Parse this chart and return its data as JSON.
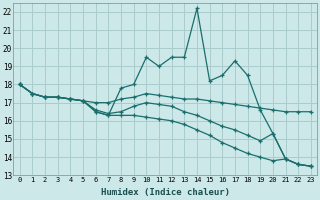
{
  "xlabel": "Humidex (Indice chaleur)",
  "bg_color": "#cce8e8",
  "grid_color": "#aacccc",
  "line_color": "#1a6e6e",
  "xlim": [
    -0.5,
    23.5
  ],
  "ylim": [
    13,
    22.5
  ],
  "yticks": [
    13,
    14,
    15,
    16,
    17,
    18,
    19,
    20,
    21,
    22
  ],
  "xticks": [
    0,
    1,
    2,
    3,
    4,
    5,
    6,
    7,
    8,
    9,
    10,
    11,
    12,
    13,
    14,
    15,
    16,
    17,
    18,
    19,
    20,
    21,
    22,
    23
  ],
  "series": [
    [
      18.0,
      17.5,
      17.3,
      17.3,
      17.2,
      17.1,
      16.5,
      16.3,
      17.8,
      18.0,
      19.5,
      19.0,
      19.5,
      19.5,
      22.2,
      18.2,
      18.5,
      19.3,
      18.5,
      16.6,
      15.3,
      13.9,
      13.6,
      13.5
    ],
    [
      18.0,
      17.5,
      17.3,
      17.3,
      17.2,
      17.1,
      17.0,
      17.0,
      17.2,
      17.3,
      17.5,
      17.4,
      17.3,
      17.2,
      17.2,
      17.1,
      17.0,
      16.9,
      16.8,
      16.7,
      16.6,
      16.5,
      16.5,
      16.5
    ],
    [
      18.0,
      17.5,
      17.3,
      17.3,
      17.2,
      17.1,
      16.6,
      16.4,
      16.5,
      16.8,
      17.0,
      16.9,
      16.8,
      16.5,
      16.3,
      16.0,
      15.7,
      15.5,
      15.2,
      14.9,
      15.3,
      13.9,
      13.6,
      13.5
    ],
    [
      18.0,
      17.5,
      17.3,
      17.3,
      17.2,
      17.1,
      16.5,
      16.3,
      16.3,
      16.3,
      16.2,
      16.1,
      16.0,
      15.8,
      15.5,
      15.2,
      14.8,
      14.5,
      14.2,
      14.0,
      13.8,
      13.9,
      13.6,
      13.5
    ]
  ]
}
